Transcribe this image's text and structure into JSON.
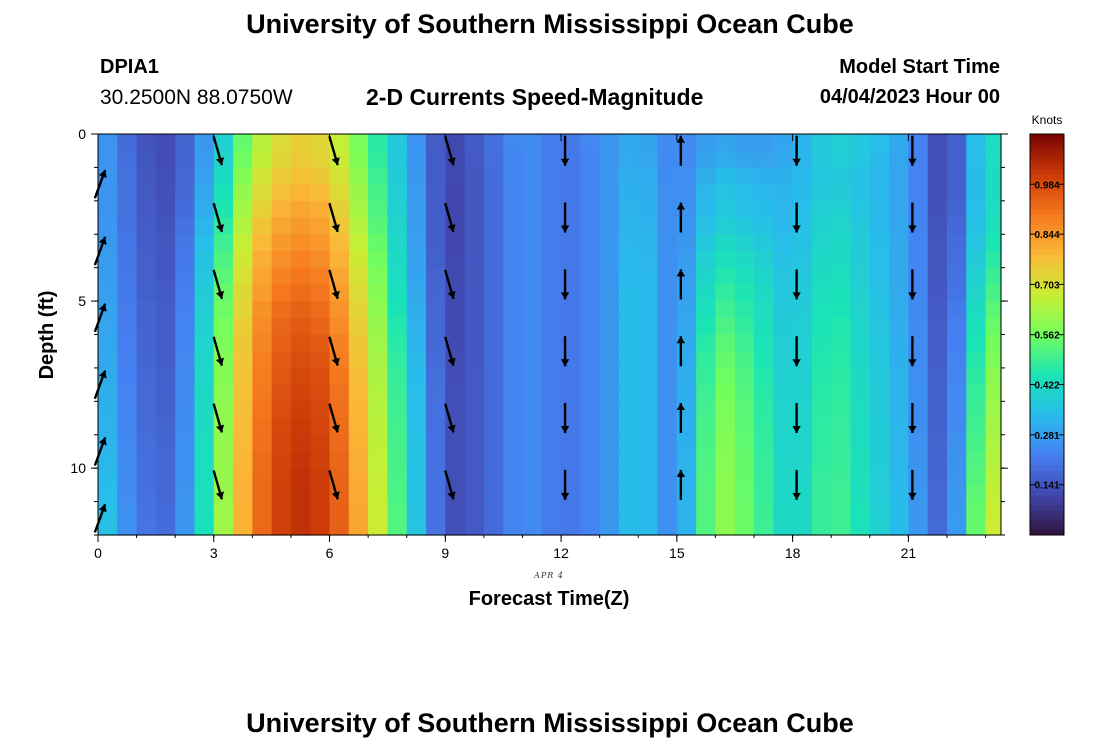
{
  "header": {
    "title": "University of Southern Mississippi Ocean Cube",
    "station": "DPIA1",
    "coords": "30.2500N  88.0750W",
    "subtitle": "2-D Currents Speed-Magnitude",
    "start_label": "Model Start Time",
    "start_value": "04/04/2023 Hour 00"
  },
  "footer": {
    "title": "University of Southern Mississippi Ocean Cube"
  },
  "chart_data": {
    "type": "heatmap",
    "title": "2-D Currents Speed-Magnitude",
    "xlabel": "Forecast Time(Z)",
    "ylabel": "Depth (ft)",
    "x_note": "APR 4",
    "xlim": [
      0,
      23.4
    ],
    "ylim": [
      0,
      12
    ],
    "x_ticks": [
      0,
      3,
      6,
      9,
      12,
      15,
      18,
      21
    ],
    "y_ticks": [
      0,
      5,
      10
    ],
    "colorbar": {
      "unit": "Knots",
      "ticks": [
        "0.984",
        "0.844",
        "0.703",
        "0.562",
        "0.422",
        "0.281",
        "0.141"
      ],
      "range": [
        0.0,
        1.125
      ]
    },
    "hours": [
      0,
      1,
      2,
      3,
      4,
      5,
      6,
      7,
      8,
      9,
      10,
      11,
      12,
      13,
      14,
      15,
      16,
      17,
      18,
      19,
      20,
      21,
      22,
      23
    ],
    "depths": [
      0.5,
      1.5,
      2.5,
      3.5,
      4.5,
      5.5,
      6.5,
      7.5,
      8.5,
      9.5,
      10.5,
      11.5
    ],
    "speed": [
      [
        0.3,
        0.15,
        0.12,
        0.32,
        0.62,
        0.75,
        0.72,
        0.52,
        0.32,
        0.1,
        0.17,
        0.26,
        0.2,
        0.25,
        0.32,
        0.22,
        0.3,
        0.27,
        0.3,
        0.4,
        0.36,
        0.28,
        0.08,
        0.43
      ],
      [
        0.3,
        0.16,
        0.12,
        0.35,
        0.68,
        0.79,
        0.76,
        0.56,
        0.33,
        0.1,
        0.16,
        0.26,
        0.2,
        0.24,
        0.34,
        0.22,
        0.36,
        0.33,
        0.32,
        0.38,
        0.34,
        0.28,
        0.08,
        0.42
      ],
      [
        0.3,
        0.16,
        0.13,
        0.38,
        0.72,
        0.84,
        0.81,
        0.58,
        0.34,
        0.1,
        0.16,
        0.26,
        0.2,
        0.24,
        0.35,
        0.22,
        0.38,
        0.35,
        0.32,
        0.42,
        0.35,
        0.28,
        0.09,
        0.43
      ],
      [
        0.31,
        0.17,
        0.14,
        0.42,
        0.77,
        0.88,
        0.85,
        0.62,
        0.35,
        0.1,
        0.16,
        0.26,
        0.2,
        0.24,
        0.36,
        0.22,
        0.44,
        0.4,
        0.33,
        0.44,
        0.36,
        0.28,
        0.1,
        0.46
      ],
      [
        0.32,
        0.17,
        0.14,
        0.45,
        0.8,
        0.92,
        0.89,
        0.65,
        0.36,
        0.11,
        0.16,
        0.26,
        0.2,
        0.24,
        0.37,
        0.22,
        0.48,
        0.44,
        0.34,
        0.46,
        0.37,
        0.28,
        0.1,
        0.5
      ],
      [
        0.33,
        0.18,
        0.15,
        0.47,
        0.83,
        0.96,
        0.92,
        0.68,
        0.38,
        0.11,
        0.16,
        0.26,
        0.2,
        0.24,
        0.37,
        0.22,
        0.52,
        0.46,
        0.35,
        0.48,
        0.38,
        0.29,
        0.11,
        0.54
      ],
      [
        0.34,
        0.18,
        0.15,
        0.49,
        0.85,
        0.98,
        0.95,
        0.7,
        0.4,
        0.11,
        0.16,
        0.26,
        0.2,
        0.24,
        0.37,
        0.22,
        0.56,
        0.48,
        0.36,
        0.49,
        0.39,
        0.29,
        0.11,
        0.57
      ],
      [
        0.35,
        0.19,
        0.16,
        0.5,
        0.86,
        1.0,
        0.97,
        0.72,
        0.41,
        0.12,
        0.16,
        0.26,
        0.2,
        0.24,
        0.37,
        0.22,
        0.58,
        0.5,
        0.36,
        0.5,
        0.4,
        0.3,
        0.12,
        0.6
      ],
      [
        0.36,
        0.19,
        0.16,
        0.51,
        0.87,
        1.02,
        0.98,
        0.73,
        0.42,
        0.12,
        0.16,
        0.26,
        0.2,
        0.24,
        0.37,
        0.22,
        0.6,
        0.51,
        0.37,
        0.51,
        0.4,
        0.3,
        0.12,
        0.62
      ],
      [
        0.37,
        0.2,
        0.17,
        0.52,
        0.88,
        1.03,
        0.99,
        0.74,
        0.43,
        0.12,
        0.16,
        0.26,
        0.2,
        0.24,
        0.37,
        0.22,
        0.61,
        0.52,
        0.37,
        0.51,
        0.41,
        0.3,
        0.13,
        0.64
      ],
      [
        0.38,
        0.2,
        0.17,
        0.52,
        0.89,
        1.04,
        1.0,
        0.75,
        0.43,
        0.12,
        0.16,
        0.26,
        0.2,
        0.24,
        0.37,
        0.22,
        0.62,
        0.52,
        0.38,
        0.52,
        0.41,
        0.31,
        0.13,
        0.66
      ],
      [
        0.4,
        0.21,
        0.18,
        0.53,
        0.89,
        1.04,
        1.0,
        0.76,
        0.44,
        0.12,
        0.16,
        0.26,
        0.2,
        0.24,
        0.37,
        0.22,
        0.62,
        0.53,
        0.38,
        0.52,
        0.42,
        0.31,
        0.14,
        0.68
      ]
    ],
    "vector_hours": [
      0,
      3,
      6,
      9,
      12,
      15,
      18,
      21
    ],
    "vector_depths": [
      1.5,
      3.5,
      5.5,
      7.5,
      9.5,
      11.5
    ],
    "vector_depths_offset": [
      0.5,
      2.5,
      4.5,
      6.5,
      8.5,
      10.5
    ],
    "vector_directions": [
      {
        "hour": 0,
        "dir": "north-northeast"
      },
      {
        "hour": 3,
        "dir": "south-southeast"
      },
      {
        "hour": 6,
        "dir": "south-southeast"
      },
      {
        "hour": 9,
        "dir": "south-southeast"
      },
      {
        "hour": 12,
        "dir": "south"
      },
      {
        "hour": 15,
        "dir": "north"
      },
      {
        "hour": 18,
        "dir": "south"
      },
      {
        "hour": 21,
        "dir": "south"
      }
    ]
  }
}
